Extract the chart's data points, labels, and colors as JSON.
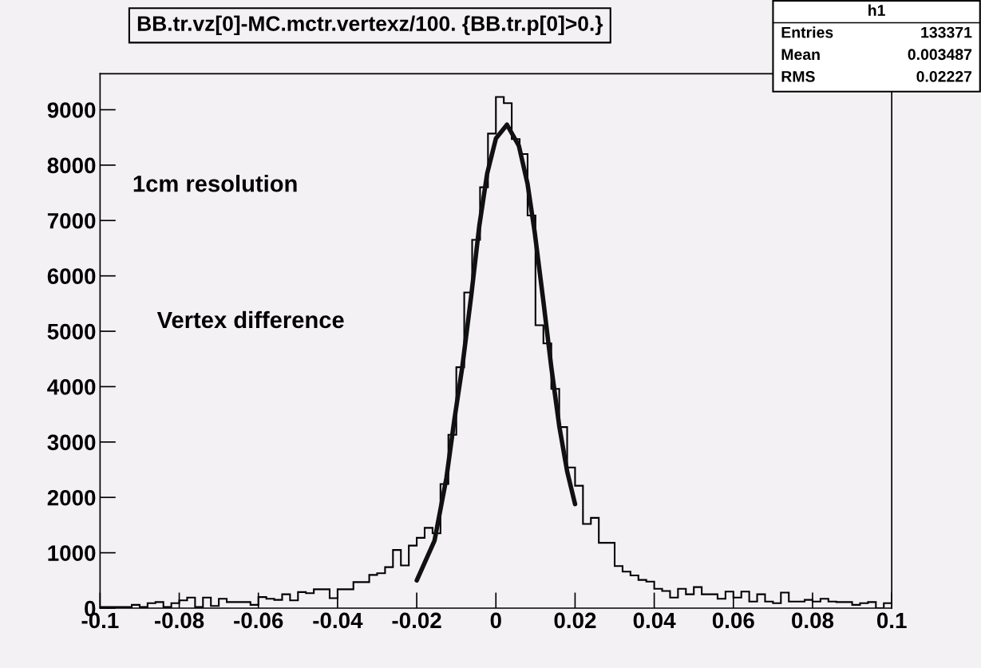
{
  "chart_data": {
    "type": "histogram",
    "title": "BB.tr.vz[0]-MC.mctr.vertexz/100. {BB.tr.p[0]>0.}",
    "annotations": [
      "1cm resolution",
      "Vertex difference",
      "h1",
      "Entries",
      "133371",
      "Mean",
      "0.003487",
      "RMS",
      "0.02227"
    ],
    "bins": [
      -0.1,
      -0.098,
      -0.096,
      -0.094,
      -0.092,
      -0.09,
      -0.088,
      -0.086,
      -0.084,
      -0.082,
      -0.08,
      -0.078,
      -0.076,
      -0.074,
      -0.072,
      -0.07,
      -0.068,
      -0.066,
      -0.064,
      -0.062,
      -0.06,
      -0.058,
      -0.056,
      -0.054,
      -0.052,
      -0.05,
      -0.048,
      -0.046,
      -0.044,
      -0.042,
      -0.04,
      -0.038,
      -0.036,
      -0.034,
      -0.032,
      -0.03,
      -0.028,
      -0.026,
      -0.024,
      -0.022,
      -0.02,
      -0.018,
      -0.016,
      -0.014,
      -0.012,
      -0.01,
      -0.008,
      -0.006,
      -0.004,
      -0.002,
      0,
      0.002,
      0.004,
      0.006,
      0.008,
      0.01,
      0.012,
      0.014,
      0.016,
      0.018,
      0.02,
      0.022,
      0.024,
      0.026,
      0.028,
      0.03,
      0.032,
      0.034,
      0.036,
      0.038,
      0.04,
      0.042,
      0.044,
      0.046,
      0.048,
      0.05,
      0.052,
      0.054,
      0.056,
      0.058,
      0.06,
      0.062,
      0.064,
      0.066,
      0.068,
      0.07,
      0.072,
      0.074,
      0.076,
      0.078,
      0.08,
      0.082,
      0.084,
      0.086,
      0.088,
      0.09,
      0.092,
      0.094,
      0.096,
      0.098,
      0.1
    ],
    "values": [
      20,
      20,
      20,
      20,
      60,
      20,
      90,
      110,
      20,
      90,
      140,
      190,
      20,
      190,
      40,
      170,
      110,
      110,
      110,
      60,
      200,
      170,
      150,
      250,
      140,
      290,
      270,
      340,
      340,
      180,
      340,
      340,
      470,
      470,
      600,
      630,
      740,
      1050,
      770,
      1130,
      1270,
      1450,
      1350,
      2240,
      3130,
      4350,
      5700,
      6650,
      7600,
      8570,
      9230,
      9120,
      8470,
      8200,
      7090,
      5110,
      4780,
      3960,
      3270,
      2540,
      2210,
      1520,
      1630,
      1180,
      1180,
      760,
      660,
      590,
      510,
      480,
      350,
      310,
      190,
      350,
      250,
      380,
      250,
      250,
      170,
      300,
      190,
      300,
      120,
      250,
      120,
      90,
      280,
      120,
      120,
      150,
      120,
      170,
      120,
      110,
      110,
      60,
      90,
      110,
      0,
      90
    ],
    "color": "#000000",
    "series": [
      {
        "type": "line",
        "color": "#111111",
        "x": [
          -0.02,
          -0.0155,
          -0.0125,
          -0.0105,
          -0.0085,
          -0.0062,
          -0.0042,
          -0.0022,
          0,
          0.0028,
          0.0058,
          0.008,
          0.0098,
          0.012,
          0.014,
          0.016,
          0.018,
          0.02
        ],
        "values": [
          500,
          1220,
          2350,
          3400,
          4350,
          5660,
          6900,
          7850,
          8480,
          8730,
          8350,
          7660,
          6790,
          5540,
          4350,
          3290,
          2470,
          1880
        ]
      }
    ],
    "xlim": [
      -0.1,
      0.1
    ],
    "ylim": [
      0,
      9650
    ],
    "xticks": [
      -0.1,
      -0.08,
      -0.06,
      -0.04,
      -0.02,
      0,
      0.02,
      0.04,
      0.06,
      0.08,
      0.1
    ],
    "yticks": [
      0,
      1000,
      2000,
      3000,
      4000,
      5000,
      6000,
      7000,
      8000,
      9000
    ],
    "grid": false,
    "legend": false
  }
}
